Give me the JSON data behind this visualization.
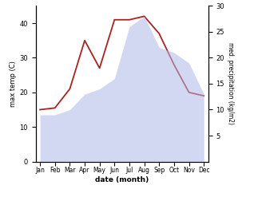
{
  "months": [
    "Jan",
    "Feb",
    "Mar",
    "Apr",
    "May",
    "Jun",
    "Jul",
    "Aug",
    "Sep",
    "Oct",
    "Nov",
    "Dec"
  ],
  "month_x": [
    0,
    1,
    2,
    3,
    4,
    5,
    6,
    7,
    8,
    9,
    10,
    11
  ],
  "temp_line": [
    15,
    15.5,
    21,
    35,
    27,
    41,
    41,
    42,
    37,
    28,
    20,
    19
  ],
  "precipitation": [
    9,
    9,
    10,
    13,
    14,
    16,
    26,
    28,
    22,
    21,
    19,
    13
  ],
  "precip_color": "#b0b8e8",
  "temp_line_color": "#aa2222",
  "ylim_left": [
    0,
    45
  ],
  "ylim_right": [
    0,
    30
  ],
  "yticks_left": [
    0,
    10,
    20,
    30,
    40
  ],
  "yticks_right": [
    5,
    10,
    15,
    20,
    25,
    30
  ],
  "xlabel": "date (month)",
  "ylabel_left": "max temp (C)",
  "ylabel_right": "med. precipitation (kg/m2)",
  "background_color": "#ffffff",
  "fill_alpha": 0.55
}
